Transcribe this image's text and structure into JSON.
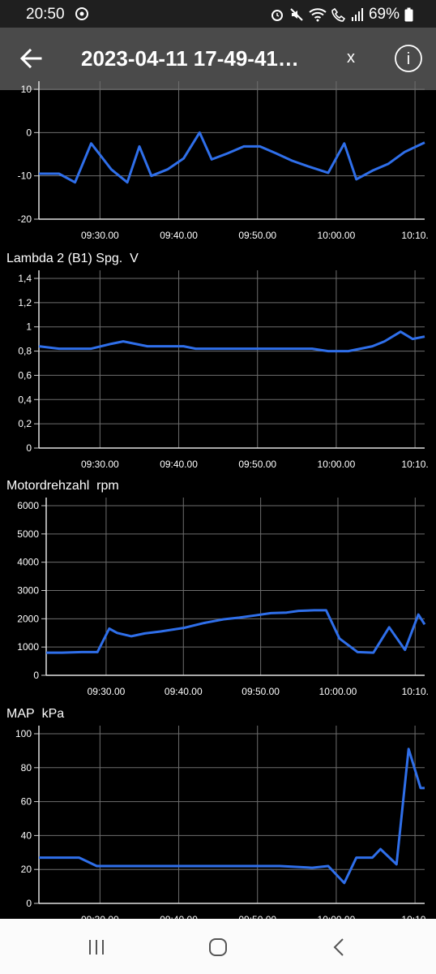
{
  "status_bar": {
    "time": "20:50",
    "battery": "69%",
    "icons": [
      "sync-icon",
      "alarm-icon",
      "mute-icon",
      "wifi-icon",
      "call-icon",
      "signal-icon",
      "battery-icon"
    ]
  },
  "app_bar": {
    "title": "2023-04-11 17-49-41…",
    "close_label": "x",
    "info_label": "i"
  },
  "x_ticks": [
    "09:30.00",
    "09:40.00",
    "09:50.00",
    "10:00.00",
    "10:10."
  ],
  "chart_data": [
    {
      "type": "line",
      "title": "",
      "unit": "",
      "ylim": [
        -20,
        10
      ],
      "yticks": [
        "-20",
        "-10",
        "0",
        "10"
      ],
      "x": [
        0,
        2.5,
        4.5,
        6.5,
        9,
        11,
        12.5,
        14,
        16,
        18,
        20,
        21.5,
        23.5,
        25.5,
        27.5,
        29.5,
        31.5,
        33.5,
        36,
        38,
        39.5,
        41.5,
        43.5,
        45.5,
        48
      ],
      "y": [
        -9.5,
        -9.5,
        -11.5,
        -2.5,
        -8.5,
        -11.5,
        -3.2,
        -10,
        -8.5,
        -6,
        0,
        -6.2,
        -4.8,
        -3.2,
        -3.2,
        -4.8,
        -6.5,
        -7.8,
        -9.3,
        -2.5,
        -10.8,
        -8.8,
        -7.2,
        -4.5,
        -2.3
      ],
      "grid": true,
      "color": "#2f6fea"
    },
    {
      "type": "line",
      "title": "Lambda 2 (B1) Spg.",
      "unit": "V",
      "ylim": [
        0,
        1.4
      ],
      "yticks": [
        "0",
        "0,2",
        "0,4",
        "0,6",
        "0,8",
        "1",
        "1,2",
        "1,4"
      ],
      "x": [
        0,
        2.5,
        6.5,
        9,
        10.5,
        13.5,
        16,
        18,
        19.5,
        22,
        26,
        30,
        34,
        36,
        38.5,
        40,
        41.5,
        43,
        45,
        46.5,
        48
      ],
      "y": [
        0.84,
        0.82,
        0.82,
        0.86,
        0.88,
        0.84,
        0.84,
        0.84,
        0.82,
        0.82,
        0.82,
        0.82,
        0.82,
        0.8,
        0.8,
        0.82,
        0.84,
        0.88,
        0.96,
        0.9,
        0.92
      ],
      "grid": true,
      "color": "#2f6fea"
    },
    {
      "type": "line",
      "title": "Motordrehzahl",
      "unit": "rpm",
      "ylim": [
        0,
        6000
      ],
      "yticks": [
        "0",
        "1000",
        "2000",
        "3000",
        "4000",
        "5000",
        "6000"
      ],
      "x": [
        0,
        2,
        4.5,
        6.5,
        8,
        9,
        10.8,
        12.5,
        14.5,
        17.5,
        20,
        22.5,
        24.5,
        26.5,
        28.5,
        30.5,
        32,
        34,
        35.5,
        37.2,
        39.5,
        41.5,
        43.5,
        45.5,
        47.2,
        48
      ],
      "y": [
        800,
        800,
        820,
        820,
        1650,
        1500,
        1380,
        1480,
        1550,
        1680,
        1850,
        1980,
        2040,
        2120,
        2200,
        2220,
        2280,
        2300,
        2300,
        1300,
        820,
        800,
        1700,
        900,
        2150,
        1800
      ],
      "grid": true,
      "color": "#2f6fea"
    },
    {
      "type": "line",
      "title": "MAP",
      "unit": "kPa",
      "ylim": [
        0,
        100
      ],
      "yticks": [
        "0",
        "20",
        "40",
        "60",
        "80",
        "100"
      ],
      "x": [
        0,
        2.5,
        5,
        7.2,
        8,
        10,
        13.5,
        18,
        22,
        26,
        30,
        34,
        36,
        38,
        39.5,
        41.5,
        42.5,
        44.5,
        46,
        47.5,
        48
      ],
      "y": [
        27,
        27,
        27,
        22,
        22,
        22,
        22,
        22,
        22,
        22,
        22,
        21,
        22,
        12,
        27,
        27,
        32,
        23,
        91,
        68,
        68
      ],
      "grid": true,
      "color": "#2f6fea"
    }
  ]
}
